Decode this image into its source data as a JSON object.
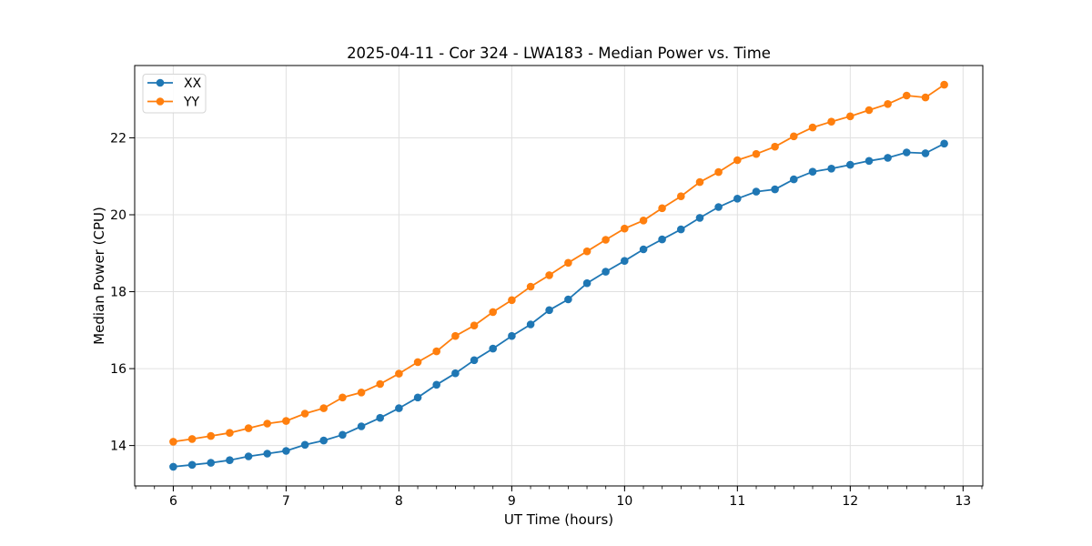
{
  "chart_data": {
    "type": "line",
    "title": "2025-04-11 - Cor 324 - LWA183 - Median Power vs. Time",
    "xlabel": "UT Time (hours)",
    "ylabel": "Median Power (CPU)",
    "xlim": [
      5.658,
      13.175
    ],
    "ylim": [
      12.95,
      23.88
    ],
    "x_ticks": [
      6,
      7,
      8,
      9,
      10,
      11,
      12,
      13
    ],
    "y_ticks": [
      14,
      16,
      18,
      20,
      22
    ],
    "x_minor_step": 0.16667,
    "grid": true,
    "grid_color": "#e0e0e0",
    "spine_color": "#000000",
    "legend_position": "upper-left",
    "x": [
      6.0,
      6.167,
      6.333,
      6.5,
      6.667,
      6.833,
      7.0,
      7.167,
      7.333,
      7.5,
      7.667,
      7.833,
      8.0,
      8.167,
      8.333,
      8.5,
      8.667,
      8.833,
      9.0,
      9.167,
      9.333,
      9.5,
      9.667,
      9.833,
      10.0,
      10.167,
      10.333,
      10.5,
      10.667,
      10.833,
      11.0,
      11.167,
      11.333,
      11.5,
      11.667,
      11.833,
      12.0,
      12.167,
      12.333,
      12.5,
      12.667,
      12.833
    ],
    "series": [
      {
        "name": "XX",
        "color": "#1f77b4",
        "values": [
          13.45,
          13.5,
          13.55,
          13.62,
          13.72,
          13.79,
          13.86,
          14.02,
          14.13,
          14.28,
          14.5,
          14.72,
          14.97,
          15.25,
          15.58,
          15.88,
          16.22,
          16.52,
          16.85,
          17.15,
          17.52,
          17.8,
          18.22,
          18.52,
          18.8,
          19.1,
          19.36,
          19.62,
          19.92,
          20.2,
          20.42,
          20.6,
          20.66,
          20.92,
          21.12,
          21.2,
          21.3,
          21.4,
          21.48,
          21.62,
          21.6,
          21.85
        ]
      },
      {
        "name": "YY",
        "color": "#ff7f0e",
        "values": [
          14.1,
          14.17,
          14.25,
          14.33,
          14.45,
          14.57,
          14.64,
          14.83,
          14.97,
          15.25,
          15.38,
          15.6,
          15.87,
          16.17,
          16.45,
          16.85,
          17.12,
          17.47,
          17.78,
          18.13,
          18.43,
          18.75,
          19.05,
          19.35,
          19.64,
          19.85,
          20.17,
          20.48,
          20.85,
          21.11,
          21.42,
          21.58,
          21.77,
          22.04,
          22.27,
          22.42,
          22.56,
          22.72,
          22.88,
          23.1,
          23.05,
          23.38
        ]
      }
    ]
  }
}
